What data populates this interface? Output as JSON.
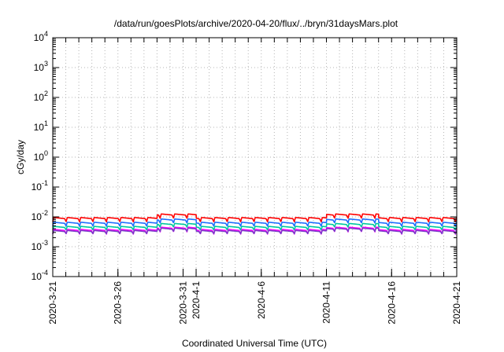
{
  "chart_data": {
    "type": "line",
    "title": "/data/run/goesPlots/archive/2020-04-20/flux/../bryn/31daysMars.plot",
    "xlabel": "Coordinated Universal Time (UTC)",
    "ylabel": "cGy/day",
    "yscale": "log",
    "ylim": [
      0.0001,
      10000
    ],
    "yticks": [
      {
        "value": 0.0001,
        "base": "10",
        "exp": "-4"
      },
      {
        "value": 0.001,
        "base": "10",
        "exp": "-3"
      },
      {
        "value": 0.01,
        "base": "10",
        "exp": "-2"
      },
      {
        "value": 0.1,
        "base": "10",
        "exp": "-1"
      },
      {
        "value": 1,
        "base": "10",
        "exp": "0"
      },
      {
        "value": 10,
        "base": "10",
        "exp": "1"
      },
      {
        "value": 100,
        "base": "10",
        "exp": "2"
      },
      {
        "value": 1000,
        "base": "10",
        "exp": "3"
      },
      {
        "value": 10000,
        "base": "10",
        "exp": "4"
      }
    ],
    "xlim": [
      "2020-03-21",
      "2020-04-21"
    ],
    "xticks": [
      "2020-3-21",
      "2020-3-26",
      "2020-3-31",
      "2020-4-1",
      "2020-4-6",
      "2020-4-11",
      "2020-4-16",
      "2020-4-21"
    ],
    "grid": true,
    "daily_period_days": 1.03,
    "series": [
      {
        "color": "#ff0000",
        "base": 0.0095,
        "elevated": 0.0125,
        "low_factor": 0.72
      },
      {
        "color": "#1e6fff",
        "base": 0.0066,
        "elevated": 0.0085,
        "low_factor": 0.74
      },
      {
        "color": "#00c8a0",
        "base": 0.0048,
        "elevated": 0.006,
        "low_factor": 0.76
      },
      {
        "color": "#ff00ff",
        "base": 0.0038,
        "elevated": 0.0045,
        "low_factor": 0.7
      },
      {
        "color": "#7a3cc8",
        "base": 0.0035,
        "elevated": 0.0042,
        "low_factor": 0.78
      }
    ],
    "elevated_periods": [
      {
        "start": "2020-03-29",
        "end": "2020-04-01"
      },
      {
        "start": "2020-04-11",
        "end": "2020-04-15"
      }
    ]
  }
}
